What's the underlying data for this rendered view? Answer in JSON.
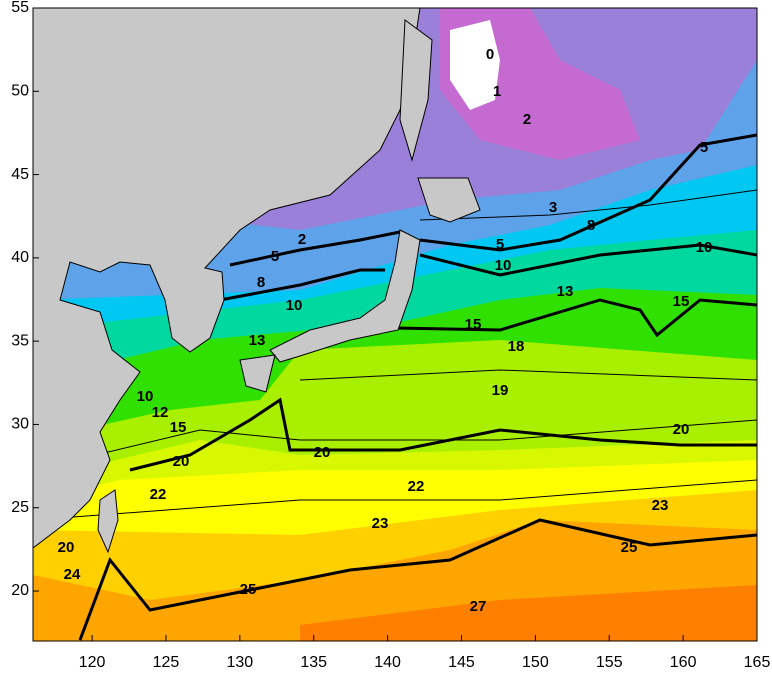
{
  "chart_data": {
    "type": "contour",
    "xlim": [
      116,
      165
    ],
    "ylim": [
      17,
      55
    ],
    "xticks": [
      120,
      125,
      130,
      135,
      140,
      145,
      150,
      155,
      160,
      165
    ],
    "yticks": [
      20,
      25,
      30,
      35,
      40,
      45,
      50,
      55
    ],
    "contour_labels": [
      "0",
      "1",
      "2",
      "2",
      "5",
      "5",
      "3",
      "8",
      "5",
      "10",
      "10",
      "8",
      "10",
      "13",
      "15",
      "15",
      "13",
      "18",
      "19",
      "10",
      "12",
      "15",
      "20",
      "20",
      "20",
      "22",
      "22",
      "23",
      "23",
      "25",
      "20",
      "24",
      "25",
      "27"
    ]
  }
}
